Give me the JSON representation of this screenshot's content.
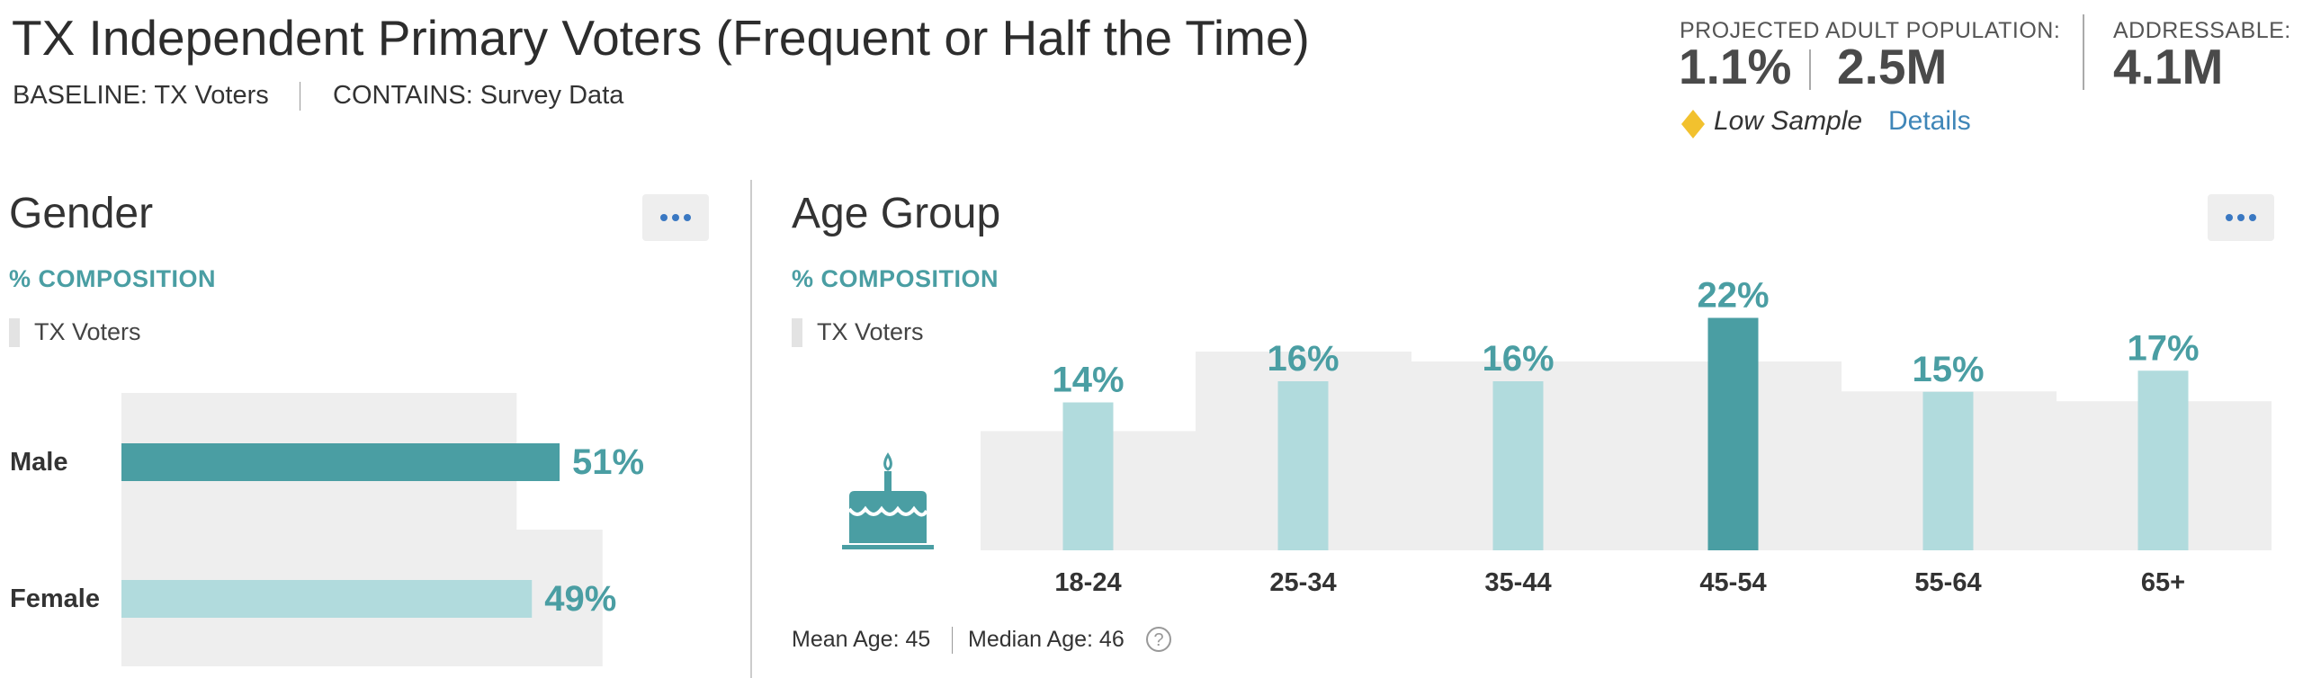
{
  "header": {
    "title": "TX Independent Primary Voters (Frequent or Half the Time)",
    "baseline": "BASELINE: TX Voters",
    "contains": "CONTAINS: Survey Data",
    "projected_label": "PROJECTED ADULT POPULATION:",
    "projected_pct": "1.1%",
    "projected_count": "2.5M",
    "addressable_label": "ADDRESSABLE:",
    "addressable_value": "4.1M",
    "low_sample": "Low Sample",
    "details_link": "Details"
  },
  "gender": {
    "title": "Gender",
    "composition_label": "% COMPOSITION",
    "legend_label": "TX Voters"
  },
  "age": {
    "title": "Age Group",
    "composition_label": "% COMPOSITION",
    "legend_label": "TX Voters",
    "mean_age": "Mean Age: 45",
    "median_age": "Median Age: 46"
  },
  "colors": {
    "accent": "#4a9ea3",
    "bar_dark": "#4a9ea3",
    "bar_light": "#b1dbdd",
    "baseline": "#eeeeee",
    "warning": "#f2c12e",
    "link": "#3f86b8"
  },
  "icons": [
    "more-dots-icon",
    "birthday-cake-icon",
    "diamond-warning-icon",
    "help-circle-icon"
  ],
  "chart_data": [
    {
      "type": "bar",
      "orientation": "horizontal",
      "categories": [
        "Male",
        "Female"
      ],
      "values": [
        51,
        49
      ],
      "labels": [
        "51%",
        "49%"
      ],
      "baseline_values": [
        46,
        56
      ],
      "highlight": "Male",
      "xlim": [
        0,
        100
      ]
    },
    {
      "type": "bar",
      "categories": [
        "18-24",
        "25-34",
        "35-44",
        "45-54",
        "55-64",
        "65+"
      ],
      "values": [
        14,
        16,
        16,
        22,
        15,
        17
      ],
      "labels": [
        "14%",
        "16%",
        "16%",
        "22%",
        "15%",
        "17%"
      ],
      "baseline_values": [
        12,
        20,
        19,
        19,
        16,
        15
      ],
      "highlight": "45-54",
      "ylim": [
        0,
        22
      ]
    }
  ]
}
